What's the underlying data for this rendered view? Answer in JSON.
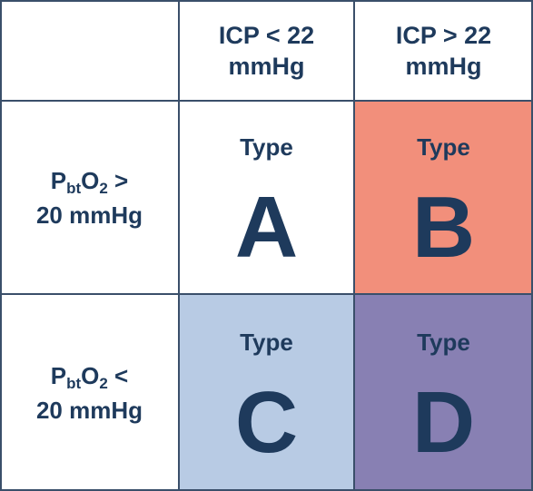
{
  "colors": {
    "text": "#1e3a5c",
    "grid_line": "#3a4f6a",
    "type_a": "#ffffff",
    "type_b": "#f28f7b",
    "type_c": "#b8cbe4",
    "type_d": "#8880b3"
  },
  "columns": [
    {
      "line1": "ICP < 22",
      "line2": "mmHg"
    },
    {
      "line1": "ICP > 22",
      "line2": "mmHg"
    }
  ],
  "rows": [
    {
      "p": "P",
      "sub": "bt",
      "o": "O",
      "sub2": "2",
      "op": " >",
      "line2": "20 mmHg"
    },
    {
      "p": "P",
      "sub": "bt",
      "o": "O",
      "sub2": "2",
      "op": " <",
      "line2": "20 mmHg"
    }
  ],
  "cells": [
    {
      "word": "Type",
      "letter": "A"
    },
    {
      "word": "Type",
      "letter": "B"
    },
    {
      "word": "Type",
      "letter": "C"
    },
    {
      "word": "Type",
      "letter": "D"
    }
  ]
}
